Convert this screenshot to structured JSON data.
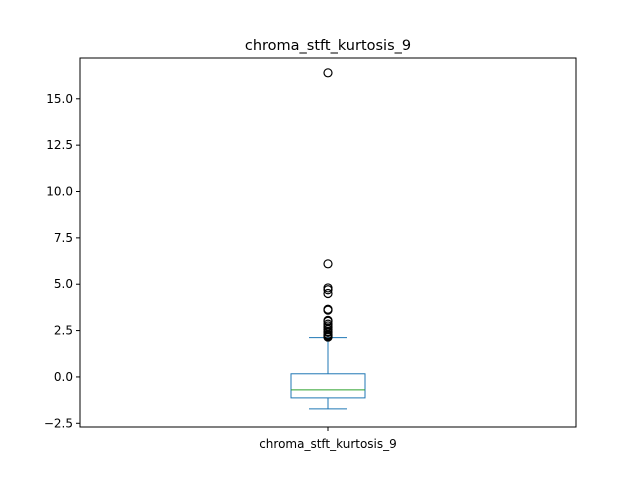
{
  "chart_data": {
    "type": "box",
    "title": "chroma_stft_kurtosis_9",
    "categories": [
      "chroma_stft_kurtosis_9"
    ],
    "ylim": [
      -2.7,
      17.2
    ],
    "yticks": [
      -2.5,
      0.0,
      2.5,
      5.0,
      7.5,
      10.0,
      12.5,
      15.0
    ],
    "ytick_labels": [
      "−2.5",
      "0.0",
      "2.5",
      "5.0",
      "7.5",
      "10.0",
      "12.5",
      "15.0"
    ],
    "box": {
      "whisker_low": -1.72,
      "q1": -1.13,
      "median": -0.7,
      "q3": 0.17,
      "whisker_high": 2.12
    },
    "outliers": [
      16.4,
      6.1,
      4.8,
      4.7,
      4.5,
      3.65,
      3.6,
      3.05,
      3.0,
      2.85,
      2.75,
      2.65,
      2.55,
      2.45,
      2.4,
      2.3,
      2.25,
      2.2,
      2.15
    ],
    "colors": {
      "box": "#1f77b4",
      "median": "#2ca02c",
      "outlier": "#000000"
    },
    "grid": false,
    "legend": "none"
  }
}
